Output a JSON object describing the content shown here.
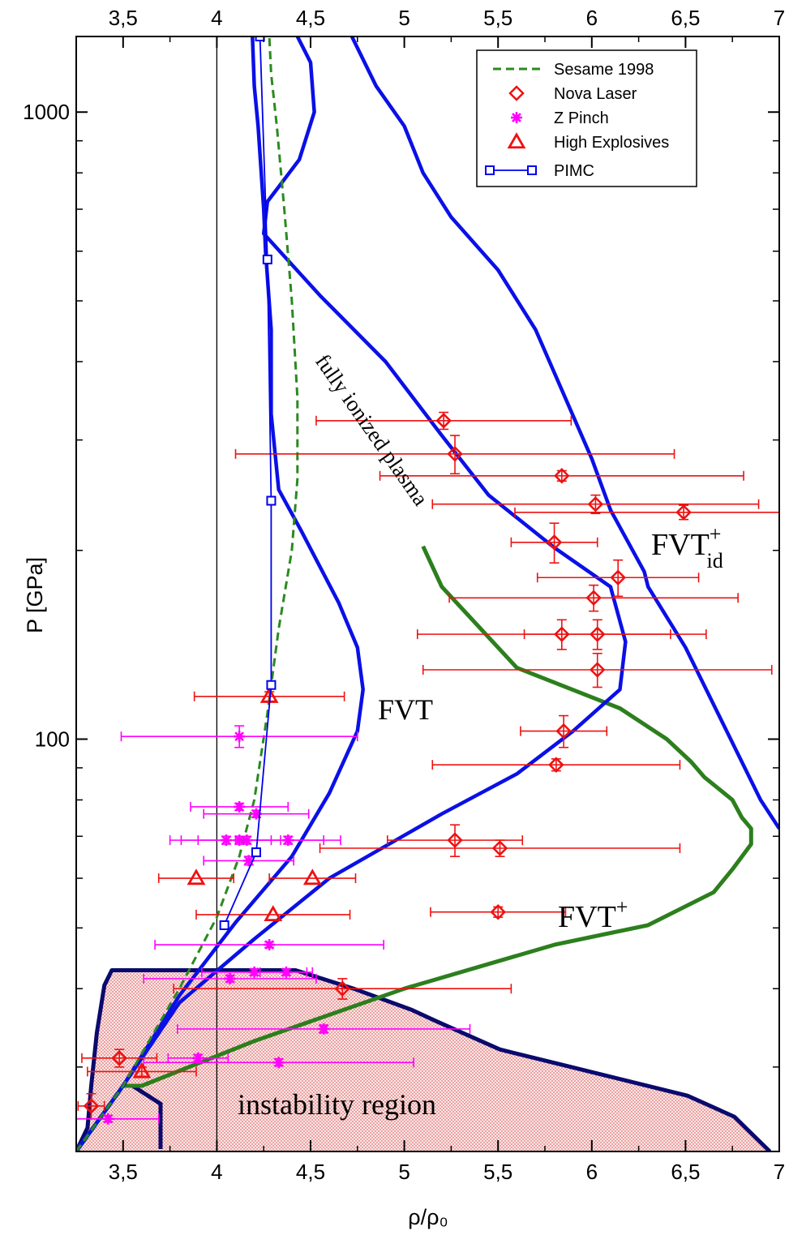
{
  "chart_data": {
    "type": "scatter",
    "xlabel": "ρ/ρ₀",
    "ylabel": "P [GPa]",
    "xlim": [
      3.25,
      7.0
    ],
    "ylim": [
      22,
      1320
    ],
    "yscale": "log",
    "x_ticks": [
      3.5,
      4,
      4.5,
      5,
      5.5,
      6,
      6.5,
      7
    ],
    "x_tick_labels": [
      "3,5",
      "4",
      "4,5",
      "5",
      "5,5",
      "6",
      "6,5",
      "7"
    ],
    "y_major_ticks": [
      100,
      1000
    ],
    "y_major_labels": [
      "100",
      "1000"
    ],
    "legend": {
      "position": "top-right",
      "entries": [
        "Sesame 1998",
        "Nova Laser",
        "Z Pinch",
        "High Explosives",
        "PIMC"
      ]
    },
    "annotations": {
      "fully_ionized": "fully ionized plasma",
      "fvt": "FVT",
      "fvt_plus": "FVT",
      "fvt_plus_sup": "+",
      "fvt_id": "FVT",
      "fvt_id_sup": "+",
      "fvt_id_sub": "id",
      "instability": "instability region"
    },
    "colors": {
      "sesame": "#2a8a20",
      "nova": "#ee1111",
      "zpinch": "#ff00ff",
      "he": "#ee1111",
      "pimc": "#0000ee",
      "fvt_curve": "#0a10e6",
      "fvt_plus_curve": "#2c7f1d",
      "instability_border": "#0a0a6e",
      "instability_fill": "#e88080"
    },
    "series": [
      {
        "name": "Sesame 1998",
        "kind": "dashed-line",
        "points": [
          [
            3.25,
            22
          ],
          [
            3.5,
            28
          ],
          [
            3.8,
            40
          ],
          [
            4.0,
            52
          ],
          [
            4.12,
            65
          ],
          [
            4.2,
            80
          ],
          [
            4.27,
            110
          ],
          [
            4.33,
            150
          ],
          [
            4.4,
            200
          ],
          [
            4.43,
            260
          ],
          [
            4.43,
            350
          ],
          [
            4.4,
            500
          ],
          [
            4.36,
            700
          ],
          [
            4.32,
            950
          ],
          [
            4.29,
            1150
          ],
          [
            4.28,
            1320
          ]
        ]
      },
      {
        "name": "Nova Laser",
        "kind": "diamond",
        "points": [
          {
            "x": 5.21,
            "y": 322,
            "xerr": [
              0.68,
              0.68
            ],
            "yerr": [
              10,
              10
            ]
          },
          {
            "x": 5.27,
            "y": 285,
            "xerr": [
              1.17,
              1.17
            ],
            "yerr": [
              20,
              20
            ]
          },
          {
            "x": 5.84,
            "y": 263,
            "xerr": [
              0.97,
              0.97
            ],
            "yerr": [
              5,
              5
            ]
          },
          {
            "x": 6.02,
            "y": 237,
            "xerr": [
              0.87,
              0.87
            ],
            "yerr": [
              8,
              8
            ]
          },
          {
            "x": 6.49,
            "y": 230,
            "xerr": [
              0.9,
              0.9
            ],
            "yerr": [
              6,
              6
            ]
          },
          {
            "x": 5.8,
            "y": 206,
            "xerr": [
              0.23,
              0.23
            ],
            "yerr": [
              15,
              15
            ]
          },
          {
            "x": 6.14,
            "y": 181,
            "xerr": [
              0.43,
              0.43
            ],
            "yerr": [
              12,
              12
            ]
          },
          {
            "x": 6.01,
            "y": 168,
            "xerr": [
              0.77,
              0.77
            ],
            "yerr": [
              8,
              8
            ]
          },
          {
            "x": 5.84,
            "y": 147,
            "xerr": [
              0.77,
              0.77
            ],
            "yerr": [
              8,
              8
            ]
          },
          {
            "x": 6.03,
            "y": 147,
            "xerr": [
              0.39,
              0.39
            ],
            "yerr": [
              8,
              8
            ]
          },
          {
            "x": 6.03,
            "y": 129,
            "xerr": [
              0.93,
              0.93
            ],
            "yerr": [
              8,
              8
            ]
          },
          {
            "x": 5.85,
            "y": 103,
            "xerr": [
              0.23,
              0.23
            ],
            "yerr": [
              6,
              6
            ]
          },
          {
            "x": 5.81,
            "y": 91,
            "xerr": [
              0.66,
              0.66
            ],
            "yerr": [
              2,
              2
            ]
          },
          {
            "x": 5.27,
            "y": 69,
            "xerr": [
              0.36,
              0.36
            ],
            "yerr": [
              4,
              4
            ]
          },
          {
            "x": 5.51,
            "y": 67,
            "xerr": [
              0.96,
              0.96
            ],
            "yerr": [
              2,
              2
            ]
          },
          {
            "x": 5.5,
            "y": 53,
            "xerr": [
              0.36,
              0.36
            ],
            "yerr": [
              1,
              1
            ]
          },
          {
            "x": 4.67,
            "y": 40,
            "xerr": [
              0.9,
              0.9
            ],
            "yerr": [
              1.5,
              1.5
            ]
          },
          {
            "x": 3.48,
            "y": 31,
            "xerr": [
              0.2,
              0.2
            ],
            "yerr": [
              1,
              1
            ]
          },
          {
            "x": 3.33,
            "y": 26,
            "xerr": [
              0.07,
              0.07
            ],
            "yerr": [
              1.2,
              1.2
            ]
          }
        ]
      },
      {
        "name": "Z Pinch",
        "kind": "star",
        "points": [
          {
            "x": 4.12,
            "y": 101,
            "xerr": [
              0.63,
              0.63
            ],
            "yerr": [
              4,
              4
            ]
          },
          {
            "x": 4.12,
            "y": 78,
            "xerr": [
              0.26,
              0.26
            ],
            "yerr": [
              1,
              1
            ]
          },
          {
            "x": 4.21,
            "y": 76,
            "xerr": [
              0.28,
              0.28
            ],
            "yerr": [
              1,
              1
            ]
          },
          {
            "x": 4.05,
            "y": 69,
            "xerr": [
              0.24,
              0.24
            ],
            "yerr": [
              1,
              1
            ]
          },
          {
            "x": 4.12,
            "y": 69,
            "xerr": [
              0.22,
              0.22
            ],
            "yerr": [
              1,
              1
            ]
          },
          {
            "x": 4.16,
            "y": 69,
            "xerr": [
              0.41,
              0.41
            ],
            "yerr": [
              1,
              1
            ]
          },
          {
            "x": 4.38,
            "y": 69,
            "xerr": [
              0.28,
              0.28
            ],
            "yerr": [
              1,
              1
            ]
          },
          {
            "x": 4.17,
            "y": 64,
            "xerr": [
              0.24,
              0.24
            ],
            "yerr": [
              1,
              1
            ]
          },
          {
            "x": 4.28,
            "y": 47,
            "xerr": [
              0.61,
              0.61
            ],
            "yerr": [
              0.5,
              0.5
            ]
          },
          {
            "x": 4.2,
            "y": 42.5,
            "xerr": [
              0.28,
              0.28
            ],
            "yerr": [
              0.5,
              0.5
            ]
          },
          {
            "x": 4.37,
            "y": 42.5,
            "xerr": [
              0.14,
              0.14
            ],
            "yerr": [
              0.5,
              0.5
            ]
          },
          {
            "x": 4.07,
            "y": 41.5,
            "xerr": [
              0.46,
              0.46
            ],
            "yerr": [
              0.5,
              0.5
            ]
          },
          {
            "x": 4.57,
            "y": 34.5,
            "xerr": [
              0.78,
              0.78
            ],
            "yerr": [
              0.5,
              0.5
            ]
          },
          {
            "x": 3.9,
            "y": 31,
            "xerr": [
              0.16,
              0.16
            ],
            "yerr": [
              0.4,
              0.4
            ]
          },
          {
            "x": 4.33,
            "y": 30.5,
            "xerr": [
              0.72,
              0.72
            ],
            "yerr": [
              0.4,
              0.4
            ]
          },
          {
            "x": 3.42,
            "y": 24.8,
            "xerr": [
              0.27,
              0.27
            ],
            "yerr": [
              0.3,
              0.3
            ]
          }
        ]
      },
      {
        "name": "High Explosives",
        "kind": "triangle",
        "points": [
          {
            "x": 4.28,
            "y": 117,
            "xerr": [
              0.4,
              0.4
            ],
            "yerr": [
              2,
              2
            ]
          },
          {
            "x": 3.89,
            "y": 60,
            "xerr": [
              0.2,
              0.2
            ],
            "yerr": [
              0,
              0
            ]
          },
          {
            "x": 4.51,
            "y": 60,
            "xerr": [
              0.23,
              0.23
            ],
            "yerr": [
              0,
              0
            ]
          },
          {
            "x": 4.3,
            "y": 52.5,
            "xerr": [
              0.41,
              0.41
            ],
            "yerr": [
              0,
              0
            ]
          },
          {
            "x": 3.6,
            "y": 29.5,
            "xerr": [
              0.29,
              0.29
            ],
            "yerr": [
              0.5,
              0.5
            ]
          }
        ]
      },
      {
        "name": "PIMC",
        "kind": "square-line",
        "points": [
          [
            4.04,
            50.5
          ],
          [
            4.21,
            66
          ],
          [
            4.29,
            122
          ],
          [
            4.29,
            240
          ],
          [
            4.27,
            582
          ],
          [
            4.23,
            1320
          ]
        ]
      }
    ],
    "curves": {
      "fvt_left": [
        [
          3.25,
          22
        ],
        [
          3.5,
          28
        ],
        [
          3.8,
          39
        ],
        [
          4.1,
          51
        ],
        [
          4.4,
          65
        ],
        [
          4.6,
          82
        ],
        [
          4.75,
          103
        ],
        [
          4.78,
          120
        ],
        [
          4.75,
          140
        ],
        [
          4.65,
          165
        ],
        [
          4.45,
          215
        ],
        [
          4.33,
          250
        ],
        [
          4.29,
          330
        ],
        [
          4.29,
          450
        ],
        [
          4.26,
          600
        ],
        [
          4.25,
          700
        ],
        [
          4.22,
          950
        ],
        [
          4.2,
          1100
        ],
        [
          4.19,
          1320
        ]
      ],
      "fvt_inner": [
        [
          3.25,
          22
        ],
        [
          3.5,
          28
        ],
        [
          3.8,
          38
        ],
        [
          4.2,
          48
        ],
        [
          4.6,
          60
        ],
        [
          5.2,
          76
        ],
        [
          5.6,
          88
        ],
        [
          5.9,
          103
        ],
        [
          6.15,
          120
        ],
        [
          6.18,
          143
        ],
        [
          6.1,
          175
        ],
        [
          5.8,
          202
        ],
        [
          5.45,
          245
        ],
        [
          5.2,
          305
        ],
        [
          4.9,
          400
        ],
        [
          4.55,
          510
        ],
        [
          4.25,
          640
        ],
        [
          4.27,
          720
        ],
        [
          4.33,
          760
        ],
        [
          4.44,
          840
        ],
        [
          4.52,
          1000
        ],
        [
          4.5,
          1200
        ],
        [
          4.43,
          1320
        ]
      ],
      "fvt_outer": [
        [
          4.72,
          1320
        ],
        [
          4.85,
          1100
        ],
        [
          5.0,
          950
        ],
        [
          5.1,
          800
        ],
        [
          5.25,
          680
        ],
        [
          5.5,
          560
        ],
        [
          5.7,
          450
        ],
        [
          6.0,
          280
        ],
        [
          6.1,
          232
        ],
        [
          6.28,
          185
        ],
        [
          6.3,
          175
        ],
        [
          6.5,
          140
        ],
        [
          6.9,
          80
        ],
        [
          7.0,
          72
        ]
      ],
      "fvt_plus": [
        [
          3.25,
          22
        ],
        [
          3.5,
          28
        ],
        [
          3.6,
          28
        ],
        [
          4.2,
          33
        ],
        [
          5.0,
          40
        ],
        [
          5.8,
          47
        ],
        [
          6.3,
          50.5
        ],
        [
          6.65,
          57
        ],
        [
          6.75,
          62
        ],
        [
          6.85,
          68
        ],
        [
          6.85,
          72
        ],
        [
          6.8,
          75
        ],
        [
          6.75,
          80
        ],
        [
          6.6,
          87
        ],
        [
          6.53,
          92
        ],
        [
          6.4,
          100
        ],
        [
          6.15,
          112
        ],
        [
          5.6,
          130
        ],
        [
          5.2,
          175
        ],
        [
          5.1,
          203
        ]
      ],
      "instability_boundary": [
        [
          3.25,
          22
        ],
        [
          3.31,
          24
        ],
        [
          3.33,
          28
        ],
        [
          3.36,
          34
        ],
        [
          3.4,
          40.5
        ],
        [
          3.44,
          42.8
        ],
        [
          4.42,
          42.8
        ],
        [
          4.73,
          40
        ],
        [
          5.04,
          37
        ],
        [
          5.17,
          35.5
        ],
        [
          5.51,
          32
        ],
        [
          5.85,
          30.2
        ],
        [
          6.51,
          27
        ],
        [
          6.76,
          25
        ],
        [
          6.95,
          22
        ]
      ]
    }
  }
}
